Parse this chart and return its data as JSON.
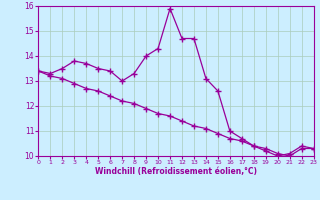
{
  "x": [
    0,
    1,
    2,
    3,
    4,
    5,
    6,
    7,
    8,
    9,
    10,
    11,
    12,
    13,
    14,
    15,
    16,
    17,
    18,
    19,
    20,
    21,
    22,
    23
  ],
  "line1_y": [
    13.4,
    13.3,
    13.5,
    13.8,
    13.7,
    13.5,
    13.4,
    13.0,
    13.3,
    14.0,
    14.3,
    15.9,
    14.7,
    14.7,
    13.1,
    12.6,
    11.0,
    10.7,
    10.4,
    10.2,
    10.0,
    10.1,
    10.4,
    10.3
  ],
  "line2_y": [
    13.4,
    13.2,
    13.1,
    12.9,
    12.7,
    12.6,
    12.4,
    12.2,
    12.1,
    11.9,
    11.7,
    11.6,
    11.4,
    11.2,
    11.1,
    10.9,
    10.7,
    10.6,
    10.4,
    10.3,
    10.1,
    10.0,
    10.3,
    10.3
  ],
  "ylim": [
    10,
    16
  ],
  "xlim": [
    0,
    23
  ],
  "yticks": [
    10,
    11,
    12,
    13,
    14,
    15,
    16
  ],
  "xticks": [
    0,
    1,
    2,
    3,
    4,
    5,
    6,
    7,
    8,
    9,
    10,
    11,
    12,
    13,
    14,
    15,
    16,
    17,
    18,
    19,
    20,
    21,
    22,
    23
  ],
  "xlabel": "Windchill (Refroidissement éolien,°C)",
  "line_color": "#990099",
  "marker": "+",
  "bg_color": "#cceeff",
  "grid_color": "#aaccbb"
}
